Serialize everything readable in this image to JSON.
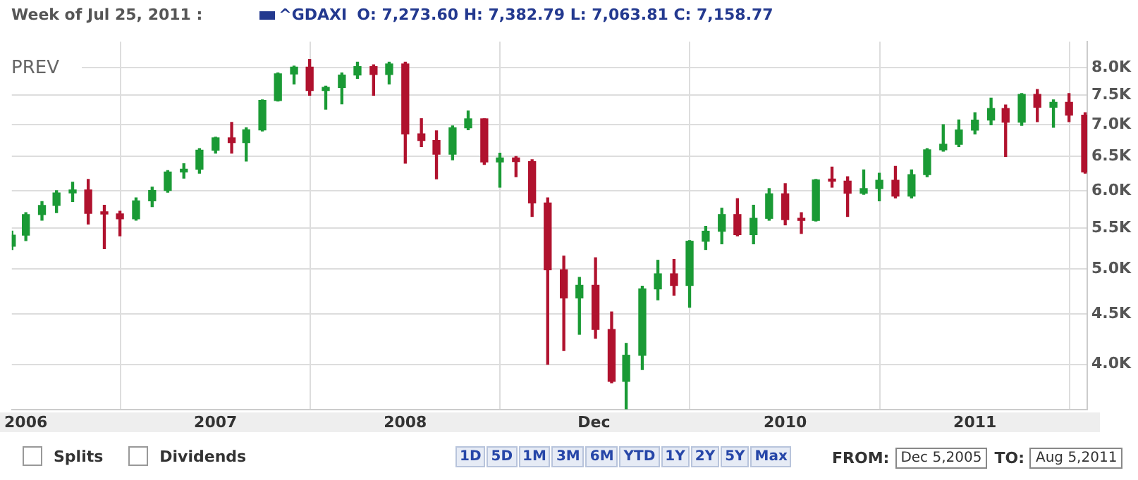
{
  "chart_data": {
    "type": "candlestick",
    "title": "Week of Jul 25, 2011 :",
    "subtitle": "O: 7,273.60 H: 7,382.79 L: 7,063.81 C: 7,158.77",
    "series": [
      {
        "name": "^GDAXI",
        "color": "#23398f",
        "x": [
          "2005-12-05",
          "2006-01",
          "2006-02",
          "2006-03",
          "2006-04",
          "2006-05",
          "2006-06",
          "2006-07",
          "2006-08",
          "2006-09",
          "2006-10",
          "2006-11",
          "2006-12",
          "2007-01",
          "2007-02",
          "2007-03",
          "2007-04",
          "2007-05",
          "2007-06",
          "2007-07",
          "2007-08",
          "2007-09",
          "2007-10",
          "2007-11",
          "2007-12",
          "2008-01",
          "2008-02",
          "2008-03",
          "2008-04",
          "2008-05",
          "2008-06",
          "2008-07",
          "2008-08",
          "2008-09",
          "2008-10",
          "2008-11",
          "2008-12",
          "2009-01",
          "2009-02",
          "2009-03",
          "2009-04",
          "2009-05",
          "2009-06",
          "2009-07",
          "2009-08",
          "2009-09",
          "2009-10",
          "2009-11",
          "2009-12",
          "2010-01",
          "2010-02",
          "2010-03",
          "2010-04",
          "2010-05",
          "2010-06",
          "2010-07",
          "2010-08",
          "2010-09",
          "2010-10",
          "2010-11",
          "2010-12",
          "2011-01",
          "2011-02",
          "2011-03",
          "2011-04",
          "2011-05",
          "2011-06",
          "2011-07",
          "2011-08"
        ],
        "ohlc": [
          [
            5270,
            5460,
            5230,
            5408
          ],
          [
            5408,
            5700,
            5340,
            5674
          ],
          [
            5674,
            5850,
            5600,
            5797
          ],
          [
            5797,
            6000,
            5700,
            5970
          ],
          [
            5970,
            6120,
            5850,
            6010
          ],
          [
            6010,
            6160,
            5550,
            5692
          ],
          [
            5692,
            5800,
            5240,
            5683
          ],
          [
            5683,
            5720,
            5400,
            5620
          ],
          [
            5620,
            5900,
            5600,
            5859
          ],
          [
            5859,
            6050,
            5780,
            6004
          ],
          [
            6004,
            6290,
            5980,
            6268
          ],
          [
            6268,
            6390,
            6180,
            6309
          ],
          [
            6309,
            6620,
            6250,
            6597
          ],
          [
            6597,
            6800,
            6550,
            6789
          ],
          [
            6789,
            7040,
            6550,
            6715
          ],
          [
            6715,
            6950,
            6430,
            6917
          ],
          [
            6917,
            7420,
            6900,
            7409
          ],
          [
            7409,
            7900,
            7400,
            7883
          ],
          [
            7883,
            8030,
            7700,
            8007
          ],
          [
            8007,
            8150,
            7500,
            7584
          ],
          [
            7584,
            7660,
            7260,
            7638
          ],
          [
            7638,
            7900,
            7350,
            7862
          ],
          [
            7862,
            8100,
            7800,
            8019
          ],
          [
            8019,
            8050,
            7500,
            7871
          ],
          [
            7871,
            8100,
            7700,
            8067
          ],
          [
            8067,
            8100,
            6400,
            6852
          ],
          [
            6852,
            7100,
            6650,
            6748
          ],
          [
            6748,
            6900,
            6170,
            6535
          ],
          [
            6535,
            6980,
            6450,
            6949
          ],
          [
            6949,
            7230,
            6920,
            7097
          ],
          [
            7097,
            7100,
            6380,
            6418
          ],
          [
            6418,
            6550,
            6050,
            6479
          ],
          [
            6479,
            6500,
            6200,
            6422
          ],
          [
            6422,
            6450,
            5650,
            5831
          ],
          [
            5831,
            5900,
            4000,
            4988
          ],
          [
            4988,
            5150,
            4130,
            4670
          ],
          [
            4670,
            4900,
            4290,
            4810
          ],
          [
            4810,
            5130,
            4250,
            4338
          ],
          [
            4338,
            4520,
            3830,
            3844
          ],
          [
            3844,
            4200,
            3590,
            4085
          ],
          [
            4085,
            4800,
            3950,
            4770
          ],
          [
            4770,
            5100,
            4650,
            4941
          ],
          [
            4941,
            5110,
            4700,
            4809
          ],
          [
            4809,
            5340,
            4570,
            5332
          ],
          [
            5332,
            5520,
            5230,
            5458
          ],
          [
            5458,
            5760,
            5300,
            5675
          ],
          [
            5675,
            5890,
            5400,
            5415
          ],
          [
            5415,
            5800,
            5300,
            5625
          ],
          [
            5625,
            6030,
            5600,
            5957
          ],
          [
            5957,
            6100,
            5540,
            5608
          ],
          [
            5608,
            5700,
            5430,
            5598
          ],
          [
            5598,
            6160,
            5590,
            6154
          ],
          [
            6154,
            6340,
            6050,
            6136
          ],
          [
            6136,
            6200,
            5650,
            5965
          ],
          [
            5965,
            6300,
            5950,
            6030
          ],
          [
            6030,
            6250,
            5860,
            6148
          ],
          [
            6148,
            6350,
            5900,
            5925
          ],
          [
            5925,
            6300,
            5900,
            6229
          ],
          [
            6229,
            6620,
            6200,
            6601
          ],
          [
            6601,
            7000,
            6580,
            6688
          ],
          [
            6688,
            7080,
            6650,
            6914
          ],
          [
            6914,
            7200,
            6850,
            7077
          ],
          [
            7077,
            7450,
            7000,
            7272
          ],
          [
            7272,
            7330,
            6500,
            7041
          ],
          [
            7041,
            7530,
            6990,
            7514
          ],
          [
            7514,
            7600,
            7050,
            7293
          ],
          [
            7293,
            7420,
            6960,
            7376
          ],
          [
            7376,
            7530,
            7050,
            7159
          ],
          [
            7159,
            7200,
            6250,
            6268
          ]
        ],
        "colors": [
          "#1a9a35",
          "#1a9a35",
          "#1a9a35",
          "#1a9a35",
          "#1a9a35",
          "#b0122e",
          "#b0122e",
          "#b0122e",
          "#1a9a35",
          "#1a9a35",
          "#1a9a35",
          "#1a9a35",
          "#1a9a35",
          "#1a9a35",
          "#b0122e",
          "#1a9a35",
          "#1a9a35",
          "#1a9a35",
          "#1a9a35",
          "#b0122e",
          "#1a9a35",
          "#1a9a35",
          "#1a9a35",
          "#b0122e",
          "#1a9a35",
          "#b0122e",
          "#b0122e",
          "#b0122e",
          "#1a9a35",
          "#1a9a35",
          "#b0122e",
          "#1a9a35",
          "#b0122e",
          "#b0122e",
          "#b0122e",
          "#b0122e",
          "#1a9a35",
          "#b0122e",
          "#b0122e",
          "#1a9a35",
          "#1a9a35",
          "#1a9a35",
          "#b0122e",
          "#1a9a35",
          "#1a9a35",
          "#1a9a35",
          "#b0122e",
          "#1a9a35",
          "#1a9a35",
          "#b0122e",
          "#b0122e",
          "#1a9a35",
          "#b0122e",
          "#b0122e",
          "#1a9a35",
          "#1a9a35",
          "#b0122e",
          "#1a9a35",
          "#1a9a35",
          "#1a9a35",
          "#1a9a35",
          "#1a9a35",
          "#1a9a35",
          "#b0122e",
          "#1a9a35",
          "#b0122e",
          "#1a9a35",
          "#b0122e",
          "#b0122e"
        ]
      }
    ],
    "xlim": [
      "2005-12-05",
      "2011-08-05"
    ],
    "xticks": [
      {
        "value": "2006-01-01",
        "label": "2006"
      },
      {
        "value": "2007-01-01",
        "label": "2007"
      },
      {
        "value": "2008-01-01",
        "label": "2008"
      },
      {
        "value": "2008-12-29",
        "label": "Dec"
      },
      {
        "value": "2010-01-01",
        "label": "2010"
      },
      {
        "value": "2011-01-01",
        "label": "2011"
      }
    ],
    "ylim": [
      3600,
      8500
    ],
    "yticks": [
      {
        "value": 4000,
        "label": "4.0K"
      },
      {
        "value": 4500,
        "label": "4.5K"
      },
      {
        "value": 5000,
        "label": "5.0K"
      },
      {
        "value": 5500,
        "label": "5.5K"
      },
      {
        "value": 6000,
        "label": "6.0K"
      },
      {
        "value": 6500,
        "label": "6.5K"
      },
      {
        "value": 7000,
        "label": "7.0K"
      },
      {
        "value": 7500,
        "label": "7.5K"
      },
      {
        "value": 8000,
        "label": "8.0K"
      }
    ],
    "log": true,
    "grid": true,
    "legend": "top left",
    "annotations": [
      "PREV",
      "Splits",
      "Dividends",
      "1D",
      "5D",
      "1M",
      "3M",
      "6M",
      "YTD",
      "1Y",
      "2Y",
      "5Y",
      "Max",
      "FROM:",
      "Dec 5,2005",
      "TO:",
      "Aug 5,2011"
    ]
  }
}
